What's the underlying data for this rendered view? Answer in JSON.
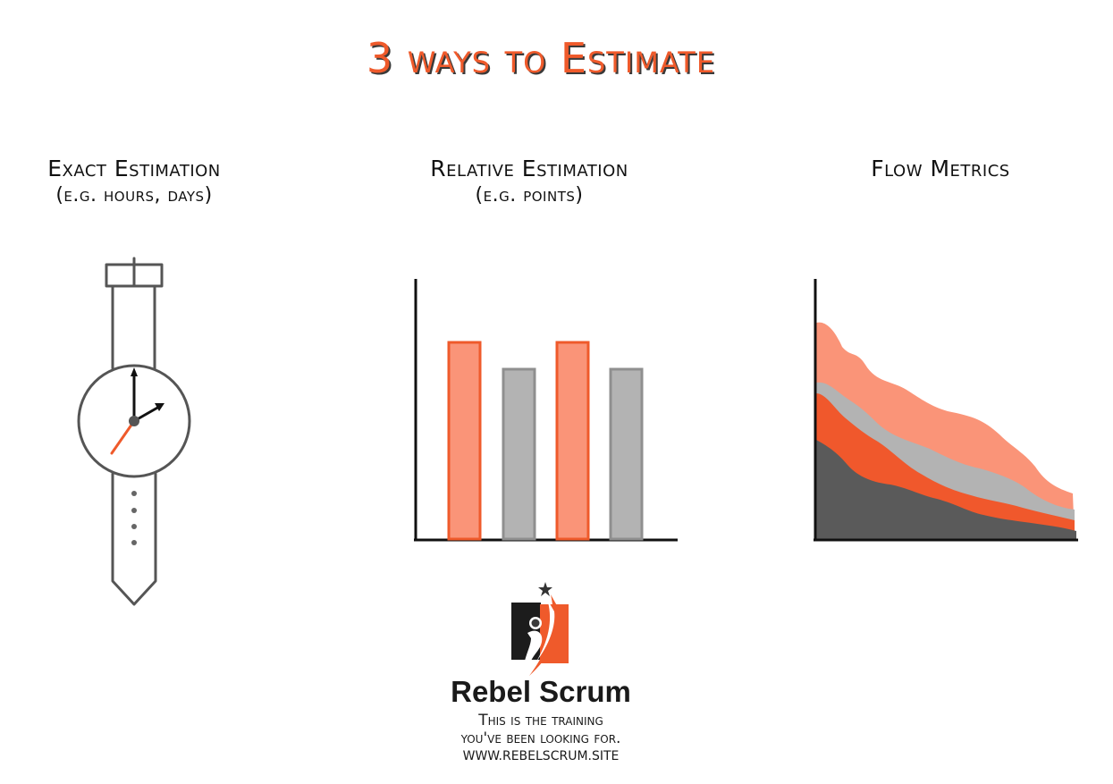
{
  "title": "3 ways to Estimate",
  "columns": [
    {
      "heading": "Exact Estimation",
      "subheading": "(e.g. hours, days)",
      "icon": "wristwatch-icon"
    },
    {
      "heading": "Relative Estimation",
      "subheading": "(e.g. points)",
      "icon": "bar-chart-icon"
    },
    {
      "heading": "Flow Metrics",
      "subheading": "",
      "icon": "cumulative-flow-icon"
    }
  ],
  "colors": {
    "accent": "#ef5a2b",
    "light_accent": "#fa9478",
    "grey": "#b3b3b3",
    "dark_grey": "#5a5a5a",
    "ink": "#333333"
  },
  "logo": {
    "icon": "rebel-scrum-figure-icon",
    "name": "Rebel Scrum",
    "tagline_line1": "This is the training",
    "tagline_line2": "you've been looking for.",
    "url": "WWW.REBELSCRUM.SITE"
  }
}
